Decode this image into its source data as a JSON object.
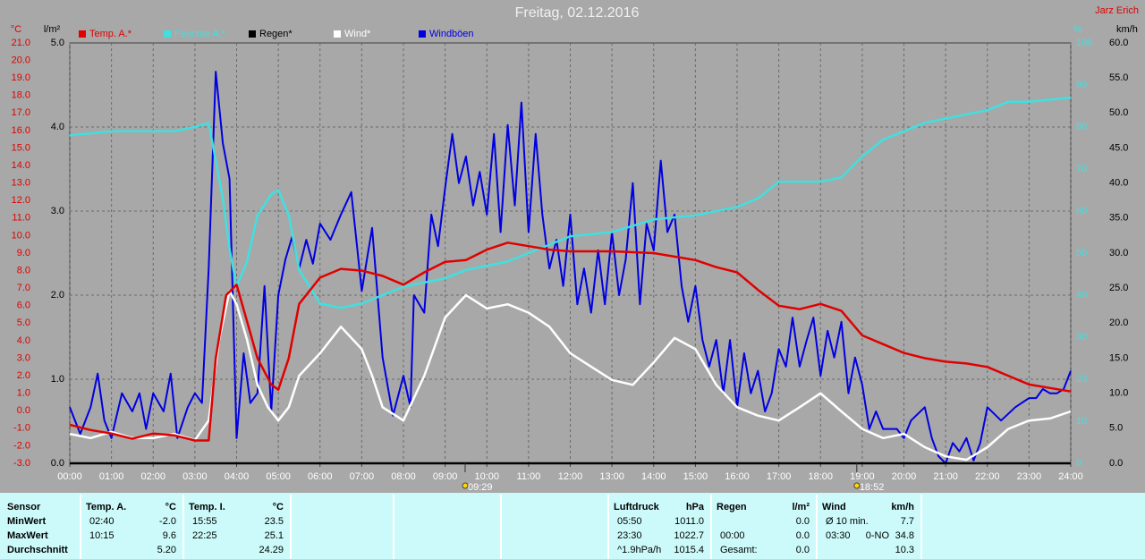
{
  "chart_data": {
    "type": "line",
    "title": "Freitag, 02.12.2016",
    "author": "Jarz Erich",
    "xlim": [
      0,
      24
    ],
    "xticks": [
      {
        "value": 0,
        "label": "00:00"
      },
      {
        "value": 1,
        "label": "01:00"
      },
      {
        "value": 2,
        "label": "02:00"
      },
      {
        "value": 3,
        "label": "03:00"
      },
      {
        "value": 4,
        "label": "04:00"
      },
      {
        "value": 5,
        "label": "05:00"
      },
      {
        "value": 6,
        "label": "06:00"
      },
      {
        "value": 7,
        "label": "07:00"
      },
      {
        "value": 8,
        "label": "08:00"
      },
      {
        "value": 9,
        "label": "09:00"
      },
      {
        "value": 10,
        "label": "10:00"
      },
      {
        "value": 11,
        "label": "11:00"
      },
      {
        "value": 12,
        "label": "12:00"
      },
      {
        "value": 13,
        "label": "13:00"
      },
      {
        "value": 14,
        "label": "14:00"
      },
      {
        "value": 15,
        "label": "15:00"
      },
      {
        "value": 16,
        "label": "16:00"
      },
      {
        "value": 17,
        "label": "17:00"
      },
      {
        "value": 18,
        "label": "18:00"
      },
      {
        "value": 19,
        "label": "19:00"
      },
      {
        "value": 20,
        "label": "20:00"
      },
      {
        "value": 21,
        "label": "21:00"
      },
      {
        "value": 22,
        "label": "22:00"
      },
      {
        "value": 23,
        "label": "23:00"
      },
      {
        "value": 24,
        "label": "24:00"
      }
    ],
    "axes": [
      {
        "label": "°C",
        "color": "#e00000",
        "side": "left",
        "lim": [
          -3,
          21
        ],
        "ticks": [
          {
            "value": -3,
            "label": "-3.0"
          },
          {
            "value": -2,
            "label": "-2.0"
          },
          {
            "value": -1,
            "label": "-1.0"
          },
          {
            "value": 0,
            "label": "0.0"
          },
          {
            "value": 1,
            "label": "1.0"
          },
          {
            "value": 2,
            "label": "2.0"
          },
          {
            "value": 3,
            "label": "3.0"
          },
          {
            "value": 4,
            "label": "4.0"
          },
          {
            "value": 5,
            "label": "5.0"
          },
          {
            "value": 6,
            "label": "6.0"
          },
          {
            "value": 7,
            "label": "7.0"
          },
          {
            "value": 8,
            "label": "8.0"
          },
          {
            "value": 9,
            "label": "9.0"
          },
          {
            "value": 10,
            "label": "10.0"
          },
          {
            "value": 11,
            "label": "11.0"
          },
          {
            "value": 12,
            "label": "12.0"
          },
          {
            "value": 13,
            "label": "13.0"
          },
          {
            "value": 14,
            "label": "14.0"
          },
          {
            "value": 15,
            "label": "15.0"
          },
          {
            "value": 16,
            "label": "16.0"
          },
          {
            "value": 17,
            "label": "17.0"
          },
          {
            "value": 18,
            "label": "18.0"
          },
          {
            "value": 19,
            "label": "19.0"
          },
          {
            "value": 20,
            "label": "20.0"
          },
          {
            "value": 21,
            "label": "21.0"
          }
        ]
      },
      {
        "label": "l/m²",
        "color": "#000000",
        "side": "left",
        "grid": true,
        "lim": [
          0,
          5
        ],
        "ticks": [
          {
            "value": 0,
            "label": "0.0"
          },
          {
            "value": 1,
            "label": "1.0"
          },
          {
            "value": 2,
            "label": "2.0"
          },
          {
            "value": 3,
            "label": "3.0"
          },
          {
            "value": 4,
            "label": "4.0"
          },
          {
            "value": 5,
            "label": "5.0"
          }
        ]
      },
      {
        "label": "%",
        "color": "#40e0e0",
        "side": "right",
        "lim": [
          0,
          100
        ],
        "ticks": [
          0,
          10,
          20,
          30,
          40,
          50,
          60,
          70,
          80,
          90,
          100
        ]
      },
      {
        "label": "km/h",
        "color": "#000000",
        "side": "right",
        "lim": [
          0,
          60
        ],
        "ticks": [
          {
            "value": 0,
            "label": "0.0"
          },
          {
            "value": 5,
            "label": "5.0"
          },
          {
            "value": 10,
            "label": "10.0"
          },
          {
            "value": 15,
            "label": "15.0"
          },
          {
            "value": 20,
            "label": "20.0"
          },
          {
            "value": 25,
            "label": "25.0"
          },
          {
            "value": 30,
            "label": "30.0"
          },
          {
            "value": 35,
            "label": "35.0"
          },
          {
            "value": 40,
            "label": "40.0"
          },
          {
            "value": 45,
            "label": "45.0"
          },
          {
            "value": 50,
            "label": "50.0"
          },
          {
            "value": 55,
            "label": "55.0"
          },
          {
            "value": 60,
            "label": "60.0"
          }
        ]
      }
    ],
    "series": [
      {
        "name": "Temp. A.*",
        "color": "#e00000",
        "axis": 0,
        "x": [
          0,
          0.5,
          1,
          1.5,
          2,
          2.5,
          3,
          3.33,
          3.5,
          3.75,
          4,
          4.25,
          4.5,
          4.83,
          5,
          5.25,
          5.5,
          6,
          6.5,
          7,
          7.5,
          8,
          8.5,
          9,
          9.5,
          10,
          10.5,
          11,
          11.5,
          12,
          13,
          14,
          15,
          15.5,
          16,
          16.5,
          17,
          17.5,
          18,
          18.5,
          19,
          19.5,
          20,
          20.5,
          21,
          21.5,
          22,
          22.5,
          23,
          23.5,
          24
        ],
        "values": [
          -0.8,
          -1.1,
          -1.3,
          -1.6,
          -1.3,
          -1.4,
          -1.7,
          -1.7,
          3.0,
          6.6,
          7.2,
          5.1,
          3.0,
          1.5,
          1.2,
          3.0,
          6.1,
          7.6,
          8.1,
          8.0,
          7.7,
          7.2,
          7.9,
          8.5,
          8.6,
          9.2,
          9.6,
          9.4,
          9.2,
          9.1,
          9.1,
          9.0,
          8.6,
          8.2,
          7.9,
          6.9,
          6.0,
          5.8,
          6.1,
          5.7,
          4.3,
          3.8,
          3.3,
          3.0,
          2.8,
          2.7,
          2.5,
          2.0,
          1.5,
          1.3,
          1.1
        ]
      },
      {
        "name": "Feuchte A.*",
        "color": "#40e0e0",
        "axis": 2,
        "x": [
          0,
          1,
          2,
          2.5,
          3,
          3.33,
          3.67,
          3.83,
          4,
          4.25,
          4.5,
          4.83,
          5,
          5.25,
          5.5,
          6,
          6.5,
          7,
          7.5,
          8,
          8.5,
          9,
          9.5,
          10,
          10.5,
          11,
          11.5,
          12,
          13,
          14,
          15,
          16,
          16.5,
          17,
          17.5,
          18,
          18.5,
          19,
          19.5,
          20,
          20.5,
          21,
          21.5,
          22,
          22.5,
          23,
          24
        ],
        "values": [
          78,
          79,
          79,
          79,
          80,
          81,
          63,
          51,
          42,
          48,
          59,
          64,
          65,
          59,
          46,
          38,
          37,
          38,
          40,
          42,
          43,
          44,
          46,
          47,
          48,
          50,
          52,
          54,
          55,
          58,
          59,
          61,
          63,
          67,
          67,
          67,
          68,
          73,
          77,
          79,
          81,
          82,
          83,
          84,
          86,
          86,
          87
        ]
      },
      {
        "name": "Regen*",
        "color": "#000000",
        "axis": 1,
        "x": [
          0,
          24
        ],
        "values": [
          0,
          0
        ]
      },
      {
        "name": "Wind*",
        "color": "#ffffff",
        "axis": 3,
        "x": [
          0,
          0.5,
          1,
          1.5,
          2,
          2.5,
          3,
          3.33,
          3.58,
          3.83,
          4,
          4.25,
          4.5,
          4.75,
          5,
          5.25,
          5.5,
          6,
          6.5,
          7,
          7.25,
          7.5,
          8,
          8.5,
          9,
          9.5,
          10,
          10.5,
          11,
          11.5,
          12,
          12.5,
          13,
          13.5,
          14,
          14.5,
          15,
          15.5,
          16,
          16.5,
          17,
          17.5,
          18,
          18.5,
          19,
          19.5,
          20,
          20.5,
          21,
          21.5,
          22,
          22.5,
          23,
          23.5,
          24
        ],
        "values": [
          4.2,
          3.6,
          4.5,
          3.6,
          3.6,
          4.2,
          3.3,
          6.1,
          17.6,
          24.6,
          22.7,
          17.6,
          11.2,
          8.0,
          6.1,
          8.0,
          12.5,
          15.7,
          19.5,
          16.3,
          12.5,
          8.0,
          6.1,
          12.5,
          20.8,
          24.0,
          22.1,
          22.7,
          21.5,
          19.5,
          15.7,
          13.8,
          11.9,
          11.2,
          14.4,
          17.9,
          16.3,
          11.2,
          8.0,
          6.8,
          6.1,
          8.0,
          10.0,
          7.4,
          4.9,
          3.6,
          4.2,
          2.3,
          1.0,
          0.5,
          2.3,
          4.9,
          6.1,
          6.4,
          7.4
        ]
      },
      {
        "name": "Windböen",
        "color": "#0000e0",
        "axis": 3,
        "x": [
          0,
          0.25,
          0.5,
          0.67,
          0.83,
          1,
          1.25,
          1.5,
          1.67,
          1.83,
          2,
          2.25,
          2.42,
          2.58,
          2.83,
          3,
          3.17,
          3.33,
          3.5,
          3.67,
          3.83,
          4,
          4.17,
          4.33,
          4.5,
          4.67,
          4.83,
          5,
          5.17,
          5.33,
          5.5,
          5.67,
          5.83,
          6,
          6.25,
          6.5,
          6.75,
          7,
          7.25,
          7.5,
          7.75,
          8,
          8.17,
          8.25,
          8.5,
          8.67,
          8.83,
          9,
          9.17,
          9.33,
          9.5,
          9.67,
          9.83,
          10,
          10.17,
          10.33,
          10.5,
          10.67,
          10.83,
          11,
          11.17,
          11.33,
          11.5,
          11.67,
          11.83,
          12,
          12.17,
          12.33,
          12.5,
          12.67,
          12.83,
          13,
          13.17,
          13.33,
          13.5,
          13.67,
          13.83,
          14,
          14.17,
          14.33,
          14.5,
          14.67,
          14.83,
          15,
          15.17,
          15.33,
          15.5,
          15.67,
          15.83,
          16,
          16.17,
          16.33,
          16.5,
          16.67,
          16.83,
          17,
          17.17,
          17.33,
          17.5,
          17.67,
          17.83,
          18,
          18.17,
          18.33,
          18.5,
          18.67,
          18.83,
          19,
          19.17,
          19.33,
          19.5,
          19.83,
          20,
          20.17,
          20.5,
          20.67,
          20.83,
          21,
          21.17,
          21.33,
          21.5,
          21.67,
          21.83,
          22,
          22.33,
          22.67,
          23,
          23.17,
          23.33,
          23.5,
          23.67,
          23.83,
          24
        ],
        "values": [
          8.0,
          4.2,
          8.0,
          12.8,
          6.1,
          3.6,
          10.0,
          7.4,
          10.0,
          4.9,
          10.0,
          7.4,
          12.8,
          3.6,
          8.0,
          10.0,
          8.6,
          27.8,
          55.9,
          45.7,
          40.6,
          3.6,
          15.7,
          8.6,
          10.0,
          25.3,
          7.4,
          24.0,
          29.1,
          32.3,
          27.8,
          31.9,
          28.5,
          34.2,
          31.9,
          35.5,
          38.7,
          24.6,
          33.6,
          15.1,
          6.8,
          12.5,
          8.0,
          24.0,
          21.5,
          35.5,
          31.0,
          39.3,
          47.0,
          40.0,
          43.8,
          36.8,
          41.6,
          35.5,
          47.0,
          33.0,
          48.3,
          36.8,
          51.5,
          33.0,
          47.0,
          35.5,
          27.8,
          31.9,
          25.3,
          35.5,
          22.7,
          27.8,
          21.5,
          30.4,
          22.7,
          33.0,
          24.0,
          29.1,
          40.0,
          22.7,
          34.2,
          30.4,
          43.2,
          33.0,
          35.5,
          25.3,
          20.2,
          25.3,
          17.6,
          13.8,
          17.6,
          10.0,
          17.6,
          8.0,
          15.7,
          10.0,
          13.2,
          7.4,
          10.0,
          16.3,
          13.8,
          20.8,
          13.8,
          17.6,
          20.8,
          12.5,
          18.9,
          15.1,
          20.2,
          10.0,
          15.1,
          11.2,
          4.9,
          7.4,
          4.9,
          4.9,
          3.6,
          6.1,
          8.0,
          3.6,
          1.0,
          0.0,
          2.9,
          1.7,
          3.6,
          0.4,
          2.9,
          8.0,
          6.1,
          8.0,
          9.3,
          9.3,
          10.6,
          10.0,
          10.0,
          10.6,
          13.2
        ]
      }
    ],
    "annotations": [
      {
        "x": 9.48,
        "label": "09:29"
      },
      {
        "x": 18.87,
        "label": "18:52"
      }
    ]
  },
  "stats": {
    "header": "Sensor",
    "rows": [
      "MinWert",
      "MaxWert",
      "Durchschnitt"
    ],
    "groups": [
      {
        "name": "Temp. A.",
        "unit": "°C",
        "rows": [
          [
            "02:40",
            "-2.0"
          ],
          [
            "10:15",
            "9.6"
          ],
          [
            "5.20"
          ]
        ]
      },
      {
        "name": "Temp. I.",
        "unit": "°C",
        "rows": [
          [
            "15:55",
            "23.5"
          ],
          [
            "22:25",
            "25.1"
          ],
          [
            "24.29"
          ]
        ]
      },
      {
        "name": "Luftdruck",
        "unit": "hPa",
        "rows": [
          [
            "05:50",
            "1011.0"
          ],
          [
            "23:30",
            "1022.7"
          ],
          [
            "^1.9hPa/h",
            "1015.4"
          ]
        ]
      },
      {
        "name": "Regen",
        "unit": "l/m²",
        "rows": [
          [
            "0.0"
          ],
          [
            "00:00",
            "0.0"
          ],
          [
            "Gesamt:",
            "0.0"
          ]
        ]
      },
      {
        "name": "Wind",
        "unit": "km/h",
        "rows": [
          [
            "Ø 10 min.",
            "7.7"
          ],
          [
            "03:30",
            "0-NO",
            "34.8"
          ],
          [
            "10.3"
          ]
        ]
      }
    ]
  }
}
